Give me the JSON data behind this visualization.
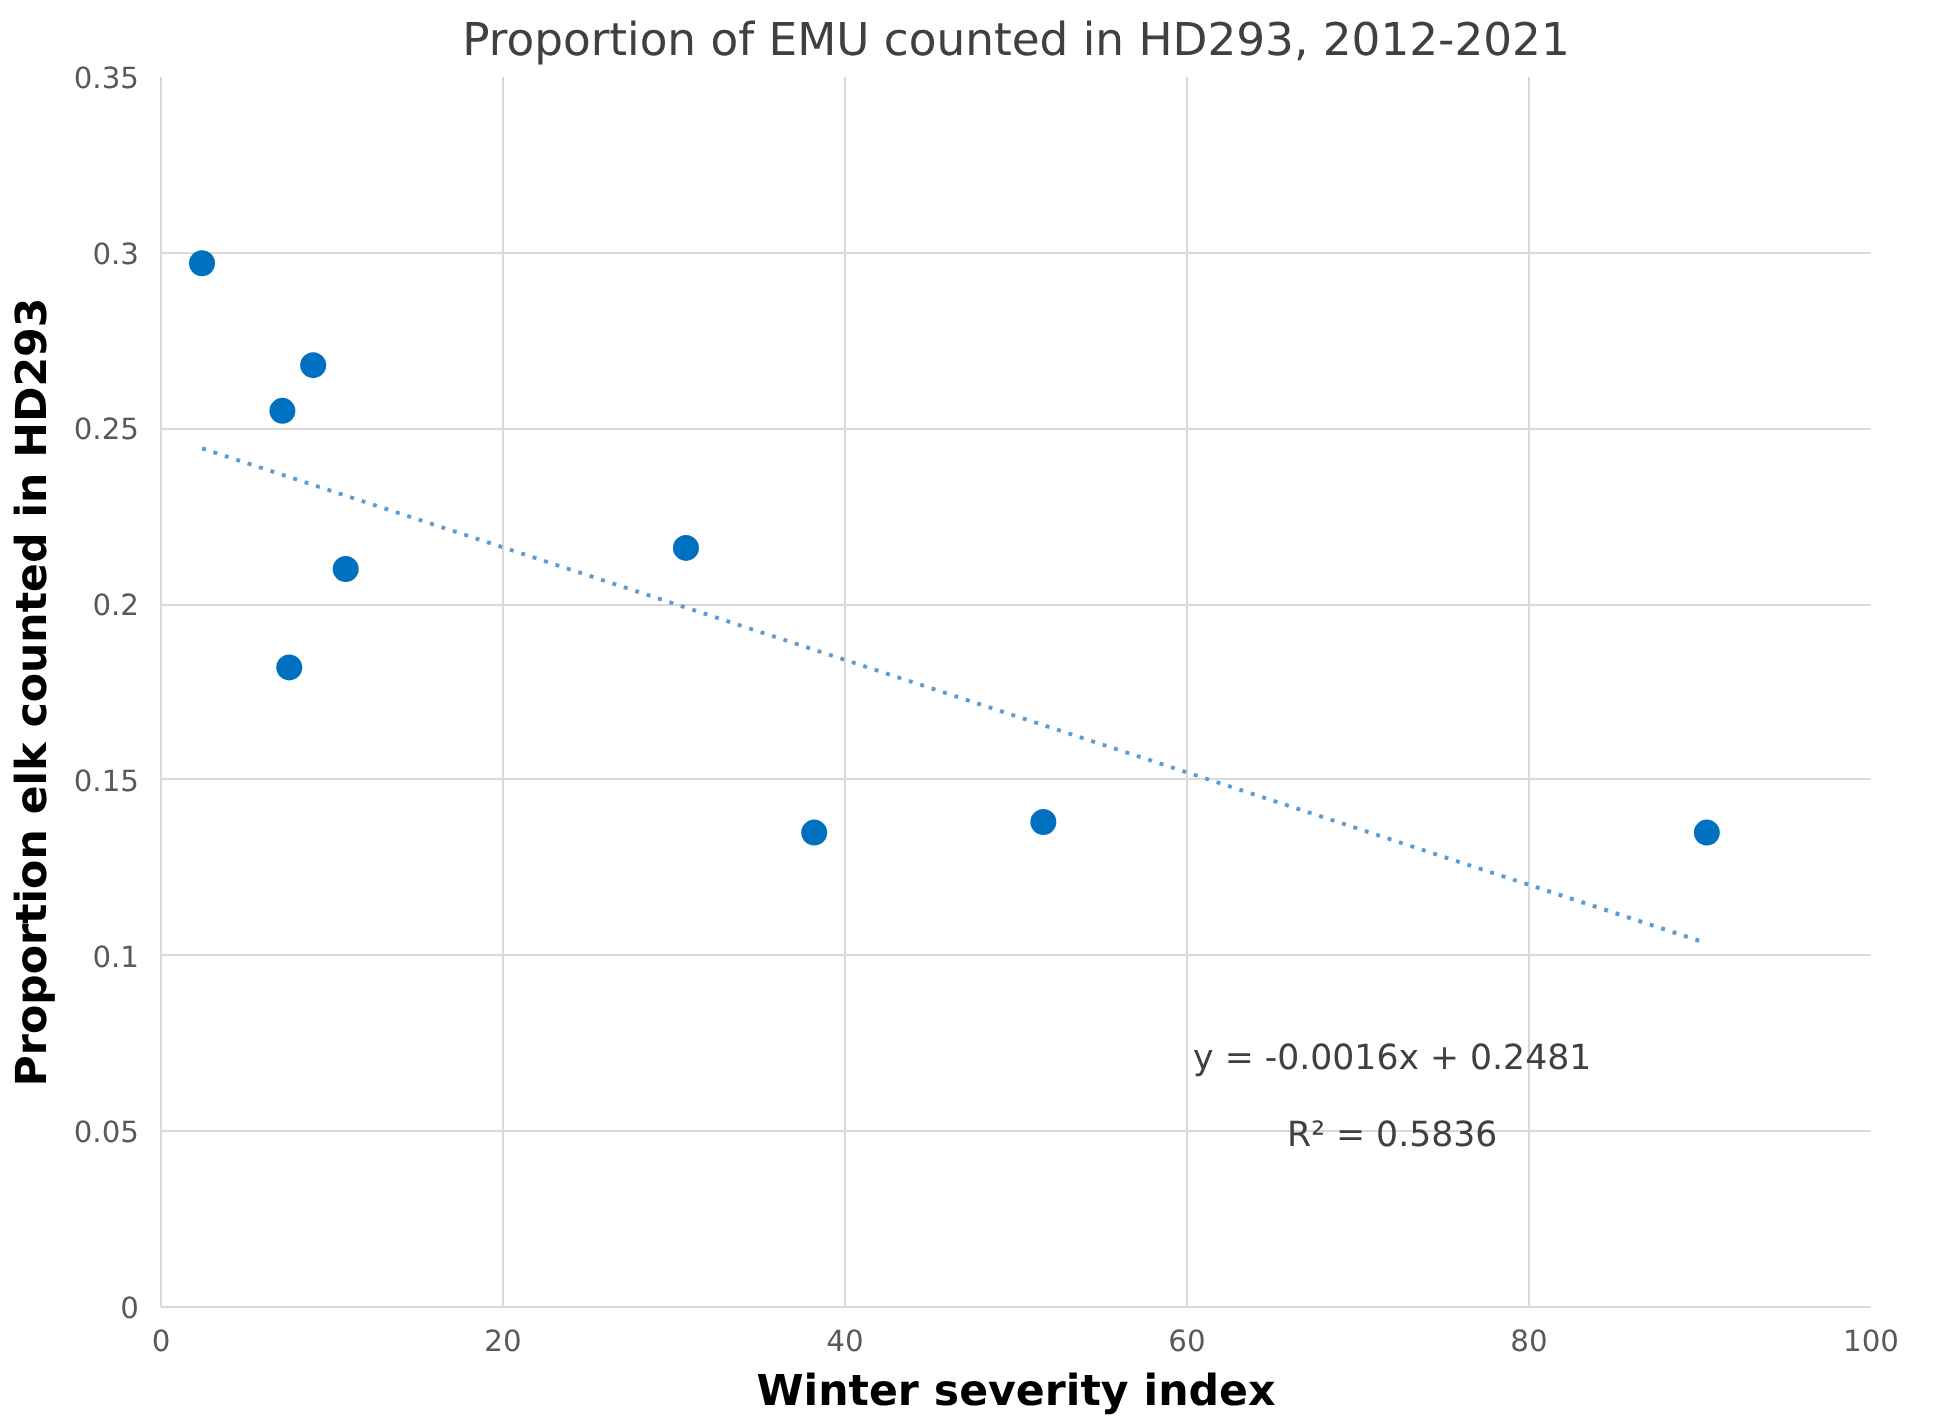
{
  "chart_data": {
    "type": "scatter",
    "title": "Proportion of EMU counted in HD293, 2012-2021",
    "xlabel": "Winter severity index",
    "ylabel": "Proportion elk counted in HD293",
    "x": [
      2.4,
      8.9,
      7.1,
      10.8,
      7.5,
      30.7,
      38.2,
      51.6,
      90.4
    ],
    "series": [
      {
        "color": "#0070c0",
        "values": [
          0.297,
          0.268,
          0.255,
          0.21,
          0.182,
          0.216,
          0.135,
          0.138,
          0.135
        ]
      },
      {
        "type": "line",
        "color": "#5b9bd5",
        "line_style": "dotted",
        "marker": "none",
        "x": [
          2.4,
          90.4
        ],
        "values": [
          0.2443,
          0.1035
        ]
      }
    ],
    "marker": "circle",
    "xlim": [
      0,
      100
    ],
    "xticks": [
      0,
      20,
      40,
      60,
      80,
      100
    ],
    "ylim": [
      0,
      0.35
    ],
    "yticks": [
      0,
      0.05,
      0.1,
      0.15,
      0.2,
      0.25,
      0.3,
      0.35
    ],
    "grid": true,
    "annotations": [
      "y = -0.0016x + 0.2481",
      "R² = 0.5836"
    ]
  }
}
